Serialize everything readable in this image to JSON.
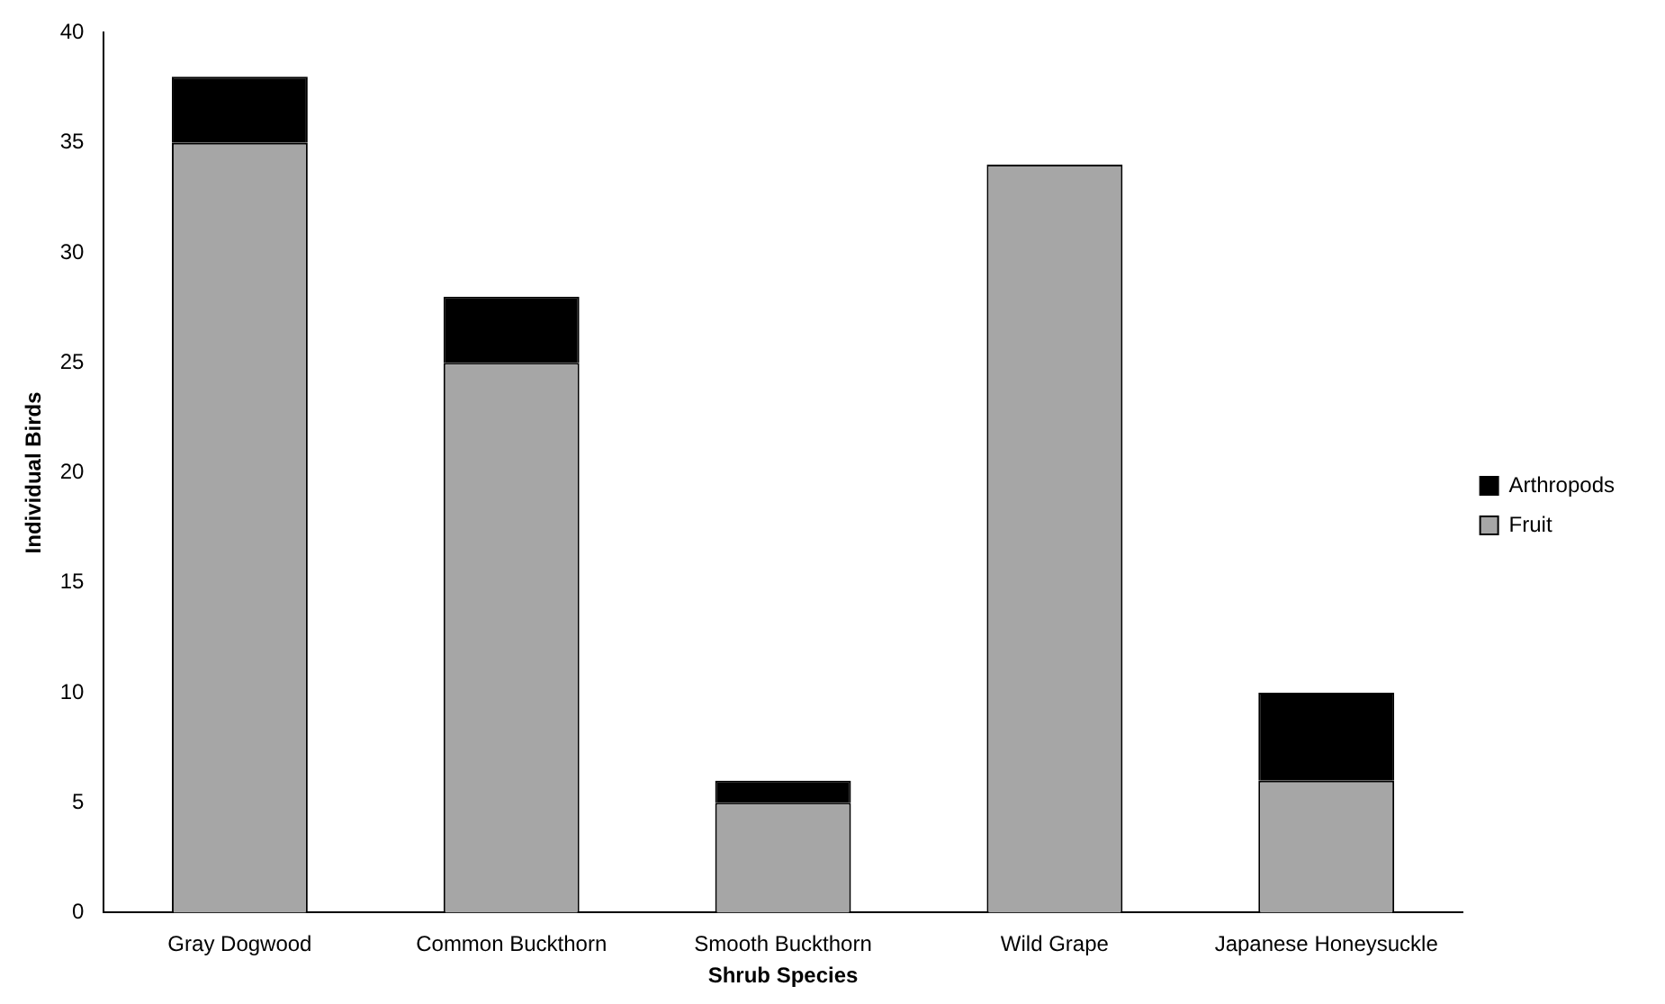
{
  "chart_data": {
    "type": "bar",
    "stacked": true,
    "xlabel": "Shrub Species",
    "ylabel": "Individual Birds",
    "categories": [
      "Gray Dogwood",
      "Common Buckthorn",
      "Smooth Buckthorn",
      "Wild Grape",
      "Japanese Honeysuckle"
    ],
    "series": [
      {
        "name": "Fruit",
        "color": "#a6a6a6",
        "values": [
          35,
          25,
          5,
          34,
          6
        ]
      },
      {
        "name": "Arthropods",
        "color": "#000000",
        "values": [
          3,
          3,
          1,
          0,
          4
        ]
      }
    ],
    "ylim": [
      0,
      40
    ],
    "yticks": [
      0,
      5,
      10,
      15,
      20,
      25,
      30,
      35,
      40
    ],
    "grid": false,
    "legend": "right"
  }
}
